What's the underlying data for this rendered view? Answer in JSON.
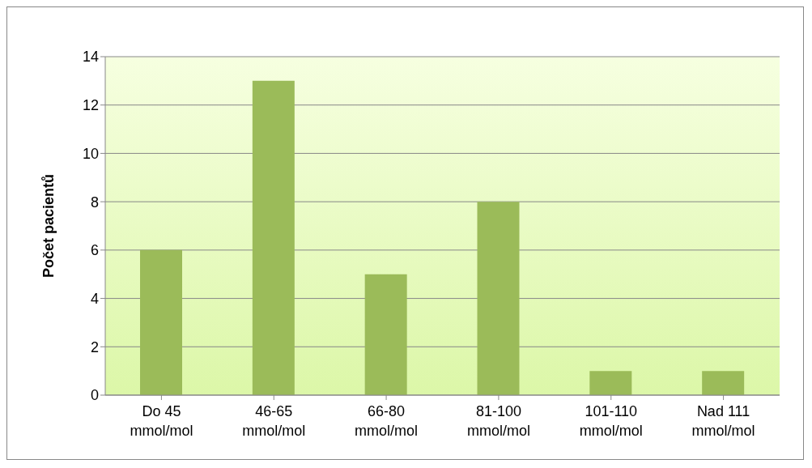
{
  "chart_data": {
    "type": "bar",
    "ylabel": "Počet pacientů",
    "categories": [
      "Do 45 mmol/mol",
      "46-65 mmol/mol",
      "66-80 mmol/mol",
      "81-100 mmol/mol",
      "101-110 mmol/mol",
      "Nad 111 mmol/mol"
    ],
    "values": [
      6,
      13,
      5,
      8,
      1,
      1
    ],
    "color": "#9bbb59",
    "ylim": [
      0,
      14
    ],
    "yticks": [
      0,
      2,
      4,
      6,
      8,
      10,
      12,
      14
    ],
    "grid": "y"
  }
}
